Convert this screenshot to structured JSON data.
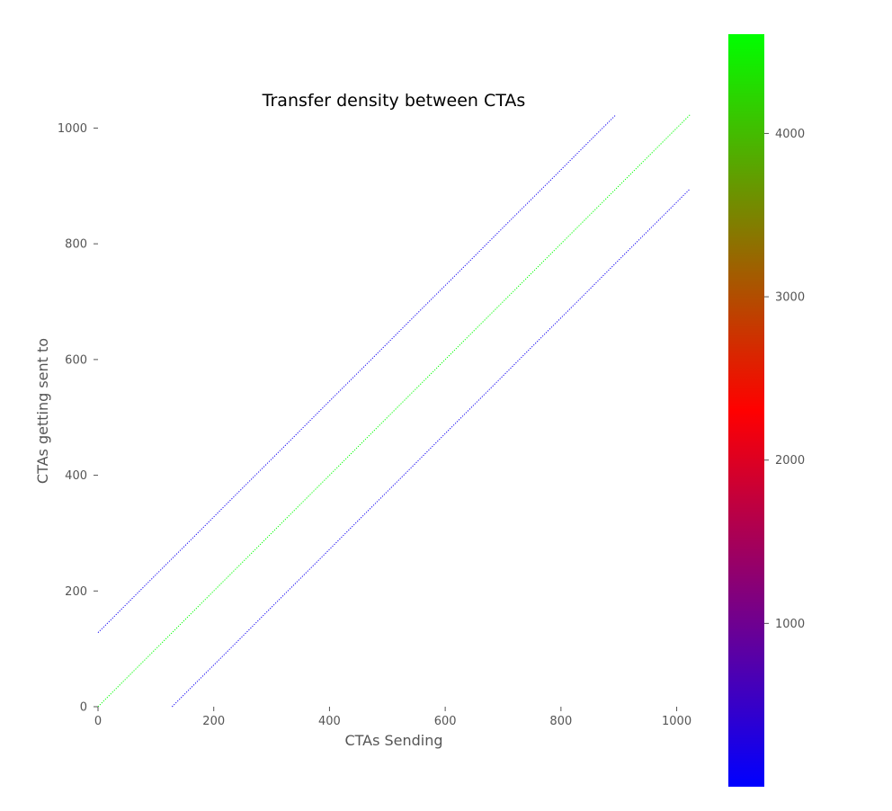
{
  "chart_data": {
    "type": "heatmap",
    "title": "Transfer density between CTAs",
    "xlabel": "CTAs Sending",
    "ylabel": "CTAs getting sent to",
    "xlim": [
      0,
      1024
    ],
    "ylim": [
      0,
      1024
    ],
    "xticks": [
      0,
      200,
      400,
      600,
      800,
      1000
    ],
    "yticks": [
      0,
      200,
      400,
      600,
      800,
      1000
    ],
    "grid": false,
    "diagonals": [
      {
        "offset": 128,
        "value": 128,
        "x_start": 0,
        "x_end": 895
      },
      {
        "offset": 0,
        "value": 4608,
        "x_start": 0,
        "x_end": 1023
      },
      {
        "offset": -128,
        "value": 128,
        "x_start": 128,
        "x_end": 1023
      }
    ],
    "colorbar": {
      "min": 0,
      "max": 4608,
      "ticks": [
        1000,
        2000,
        3000,
        4000
      ],
      "stops": [
        {
          "value": 0,
          "color": "#0000ff"
        },
        {
          "value": 2304,
          "color": "#ff0000"
        },
        {
          "value": 4608,
          "color": "#00ff00"
        }
      ]
    }
  }
}
